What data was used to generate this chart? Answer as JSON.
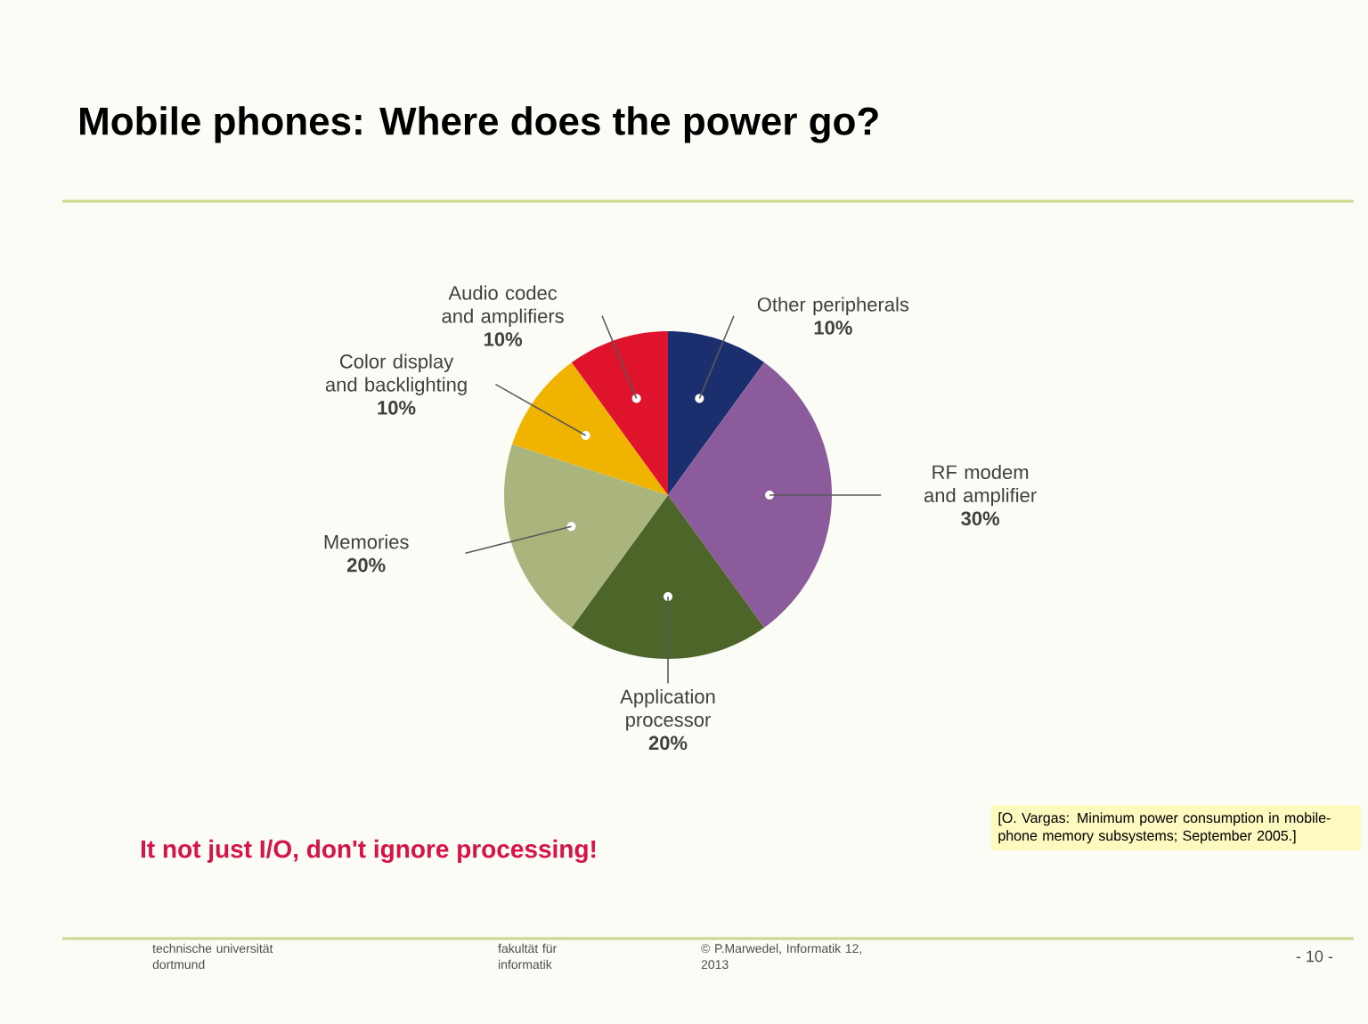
{
  "chart_data": {
    "type": "pie",
    "title": "Mobile phones: Where does the power go?",
    "categories": [
      "Other peripherals",
      "RF modem and amplifier",
      "Application processor",
      "Memories",
      "Color display and backlighting",
      "Audio codec and amplifiers"
    ],
    "values": [
      10,
      30,
      20,
      20,
      10,
      10
    ],
    "colors": [
      "#1b2e6e",
      "#8b5b9b",
      "#4d6529",
      "#a9b57c",
      "#f0b400",
      "#e0132c"
    ],
    "value_labels": [
      "10%",
      "30%",
      "20%",
      "20%",
      "10%",
      "10%"
    ],
    "annotations": [
      "It not just I/O, don't ignore processing!",
      "[O. Vargas: Minimum power consumption in mobile-phone memory subsystems; September 2005.]",
      "technische universität dortmund",
      "fakultät für informatik",
      "© P.Marwedel, Informatik 12, 2013",
      "- 10 -"
    ]
  }
}
